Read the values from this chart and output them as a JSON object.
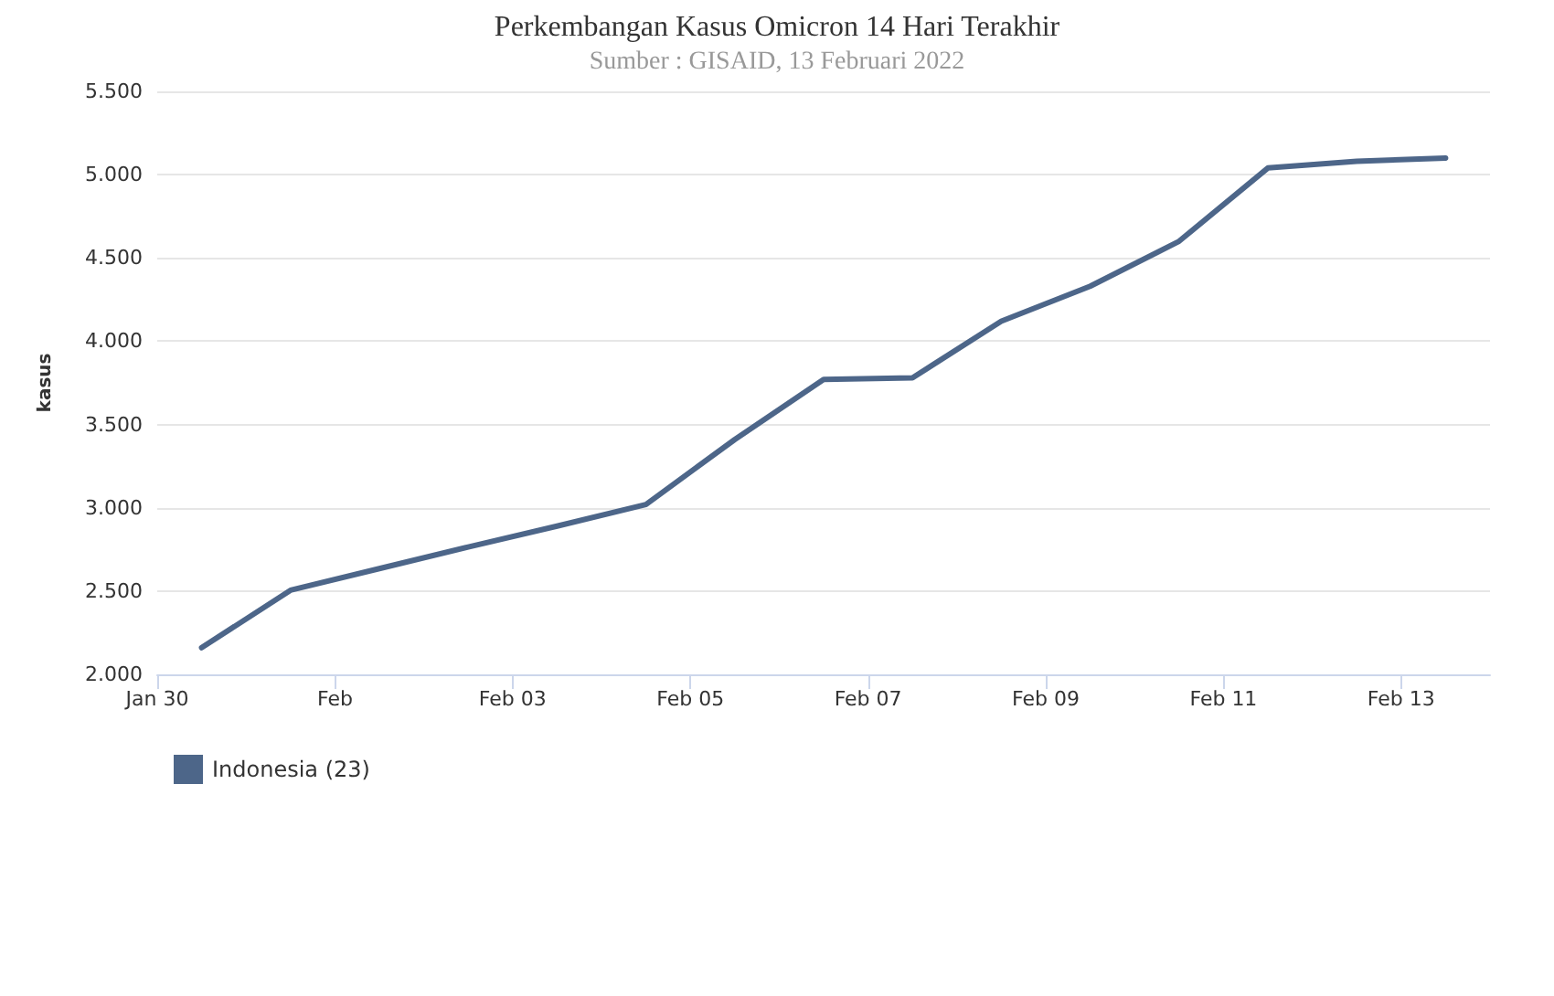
{
  "chart_data": {
    "type": "line",
    "title": "Perkembangan Kasus Omicron 14 Hari Terakhir",
    "subtitle": "Sumber : GISAID, 13 Februari 2022",
    "ylabel": "kasus",
    "x": [
      "2022-01-30T12:00",
      "2022-01-31T12:00",
      "2022-02-01T12:00",
      "2022-02-02T12:00",
      "2022-02-03T12:00",
      "2022-02-04T12:00",
      "2022-02-05T12:00",
      "2022-02-06T12:00",
      "2022-02-07T12:00",
      "2022-02-08T12:00",
      "2022-02-09T12:00",
      "2022-02-10T12:00",
      "2022-02-11T12:00",
      "2022-02-12T12:00",
      "2022-02-13T12:00"
    ],
    "series": [
      {
        "name": "Indonesia (23)",
        "color": "#4d6689",
        "values": [
          2160,
          2505,
          2635,
          2765,
          2890,
          3020,
          3410,
          3770,
          3780,
          4120,
          4330,
          4600,
          5040,
          5080,
          5100
        ]
      }
    ],
    "xlim": [
      "2022-01-30T00:00",
      "2022-02-14T00:00"
    ],
    "xticks": [
      {
        "value": "2022-01-30T00:00",
        "label": "Jan 30"
      },
      {
        "value": "2022-02-01T00:00",
        "label": "Feb"
      },
      {
        "value": "2022-02-03T00:00",
        "label": "Feb 03"
      },
      {
        "value": "2022-02-05T00:00",
        "label": "Feb 05"
      },
      {
        "value": "2022-02-07T00:00",
        "label": "Feb 07"
      },
      {
        "value": "2022-02-09T00:00",
        "label": "Feb 09"
      },
      {
        "value": "2022-02-11T00:00",
        "label": "Feb 11"
      },
      {
        "value": "2022-02-13T00:00",
        "label": "Feb 13"
      }
    ],
    "ylim": [
      2000,
      5500
    ],
    "yticks": [
      {
        "value": 2000,
        "label": "2.000"
      },
      {
        "value": 2500,
        "label": "2.500"
      },
      {
        "value": 3000,
        "label": "3.000"
      },
      {
        "value": 3500,
        "label": "3.500"
      },
      {
        "value": 4000,
        "label": "4.000"
      },
      {
        "value": 4500,
        "label": "4.500"
      },
      {
        "value": 5000,
        "label": "5.000"
      },
      {
        "value": 5500,
        "label": "5.500"
      }
    ],
    "grid": "y",
    "legend": "bottom left",
    "marker": "none",
    "line_style": "solid"
  }
}
